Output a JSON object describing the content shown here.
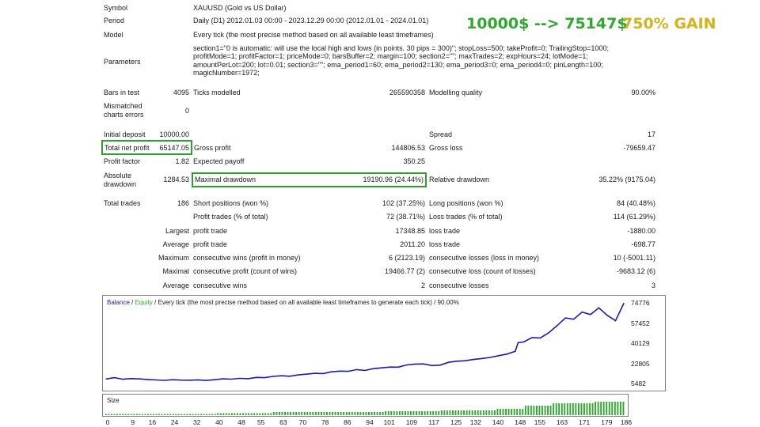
{
  "rows": {
    "symbol": {
      "label": "Symbol",
      "value": "XAUUSD (Gold vs US Dollar)"
    },
    "period": {
      "label": "Period",
      "value": "Daily (D1) 2012.01.03 00:00 - 2023.12.29 00:00 (2012.01.01 - 2024.01.01)"
    },
    "model": {
      "label": "Model",
      "value": "Every tick (the most precise method based on all available least timeframes)"
    },
    "parameters": {
      "label": "Parameters",
      "value": "section1=\"0 is automatic: will use the local high and lows (in points. 30 pips = 300)\"; stopLoss=500; takeProfit=0; TrailingStop=1000; profitMode=1; profitFactor=1; priceMode=0; barsBuffer=2; margin=100; section2=\"\"; maxTrades=2; expHours=24; lotMode=1; amountPerLot=200; lot=0.01; section3=\"\"; ema_period1=60; ema_period2=130; ema_period3=0; ema_period4=0; pinLength=100; magicNumber=1972;"
    }
  },
  "headline": {
    "growth": "10000$ --> 75147$",
    "gain": "750% GAIN",
    "growth_color": "#2ea82e",
    "gain_color": "#d4b21c"
  },
  "stats": {
    "bars_label": "Bars in test",
    "bars": "4095",
    "ticks_label": "Ticks modelled",
    "ticks": "265590358",
    "quality_label": "Modelling quality",
    "quality": "90.00%",
    "mismatch_label1": "Mismatched",
    "mismatch_label2": "charts errors",
    "mismatch": "0",
    "deposit_label": "Initial deposit",
    "deposit": "10000.00",
    "spread_label": "Spread",
    "spread": "17",
    "net_label": "Total net profit",
    "net": "65147.05",
    "gross_profit_label": "Gross profit",
    "gross_profit": "144806.53",
    "gross_loss_label": "Gross loss",
    "gross_loss": "-79659.47",
    "pf_label": "Profit factor",
    "pf": "1.82",
    "payoff_label": "Expected payoff",
    "payoff": "350.25",
    "abs_dd_label1": "Absolute",
    "abs_dd_label2": "drawdown",
    "abs_dd": "1284.53",
    "max_dd_label": "Maximal drawdown",
    "max_dd": "19190.96 (24.44%)",
    "rel_dd_label": "Relative drawdown",
    "rel_dd": "35.22% (9175.04)",
    "total_trades_label": "Total trades",
    "total_trades": "186",
    "short_label": "Short positions (won %)",
    "short": "102 (37.25%)",
    "long_label": "Long positions (won %)",
    "long": "84 (40.48%)",
    "profit_trades_label": "Profit trades (% of total)",
    "profit_trades": "72 (38.71%)",
    "loss_trades_label": "Loss trades (% of total)",
    "loss_trades": "114 (61.29%)",
    "largest_label": "Largest",
    "profit_trade_label": "profit trade",
    "largest_profit": "17348.85",
    "loss_trade_label": "loss trade",
    "largest_loss": "-1880.00",
    "average_label": "Average",
    "avg_profit": "2011.20",
    "avg_loss": "-698.77",
    "maximum_label": "Maximum",
    "cons_wins_money_label": "consecutive wins (profit in money)",
    "cons_wins_money": "6 (2123.19)",
    "cons_losses_money_label": "consecutive losses (loss in money)",
    "cons_losses_money": "10 (-5001.11)",
    "maximal_label": "Maximal",
    "cons_profit_count_label": "consecutive profit (count of wins)",
    "cons_profit_count": "19466.77 (2)",
    "cons_loss_count_label": "consecutive loss (count of losses)",
    "cons_loss_count": "-9683.12 (6)",
    "avg_wins_label": "consecutive wins",
    "avg_wins": "2",
    "avg_losses_label": "consecutive losses",
    "avg_losses": "3"
  },
  "chart_legend": {
    "balance": "Balance",
    "sep": " / ",
    "equity": "Equity",
    "rest": " / Every tick (the most precise method based on all available least timeframes to generate each tick) / 90.00%",
    "balance_color": "#1c1ca8",
    "equity_color": "#2ea82e"
  },
  "size_label": "Size",
  "colors": {
    "highlight_border": "#2f9e2f",
    "balance_line": "#1c1ca8",
    "size_bars": "#2ea82e"
  },
  "chart_data": {
    "type": "line",
    "title": "",
    "series": [
      {
        "name": "Balance",
        "x": [
          0,
          3,
          6,
          9,
          12,
          15,
          18,
          21,
          24,
          27,
          30,
          33,
          36,
          39,
          42,
          45,
          48,
          51,
          54,
          57,
          60,
          63,
          66,
          69,
          72,
          75,
          78,
          81,
          84,
          87,
          90,
          93,
          96,
          99,
          102,
          105,
          108,
          111,
          114,
          117,
          120,
          123,
          126,
          129,
          132,
          135,
          138,
          141,
          144,
          147,
          148,
          150,
          153,
          156,
          159,
          162,
          165,
          168,
          171,
          174,
          177,
          180,
          183,
          186
        ],
        "values": [
          10000,
          11200,
          9800,
          10400,
          10100,
          9600,
          9200,
          8900,
          9400,
          9100,
          9000,
          9300,
          8800,
          9400,
          10200,
          9900,
          10600,
          10300,
          11400,
          11200,
          12300,
          12800,
          12400,
          13600,
          14200,
          14900,
          14700,
          16200,
          16800,
          16600,
          18100,
          17400,
          18900,
          19600,
          20300,
          20200,
          22100,
          22900,
          23000,
          21600,
          21900,
          24400,
          25300,
          25700,
          26800,
          27600,
          28600,
          30100,
          31400,
          33800,
          41300,
          41800,
          45600,
          45300,
          49800,
          55800,
          62500,
          61400,
          67600,
          65400,
          71200,
          64800,
          60100,
          75147
        ]
      }
    ],
    "ylim": [
      5482,
      74776
    ],
    "yticks": [
      "74776",
      "57452",
      "40129",
      "22805",
      "5482"
    ],
    "xticks": [
      "0",
      "9",
      "16",
      "24",
      "32",
      "40",
      "48",
      "55",
      "63",
      "70",
      "78",
      "86",
      "94",
      "101",
      "109",
      "117",
      "125",
      "132",
      "140",
      "148",
      "155",
      "163",
      "171",
      "179",
      "186"
    ]
  },
  "size_data": {
    "label": "Size",
    "lots": [
      0.01,
      0.02,
      0.03,
      0.04,
      0.05,
      0.06,
      0.07,
      0.08,
      0.09,
      0.1,
      0.11,
      0.12,
      0.13,
      0.14,
      0.15
    ]
  }
}
